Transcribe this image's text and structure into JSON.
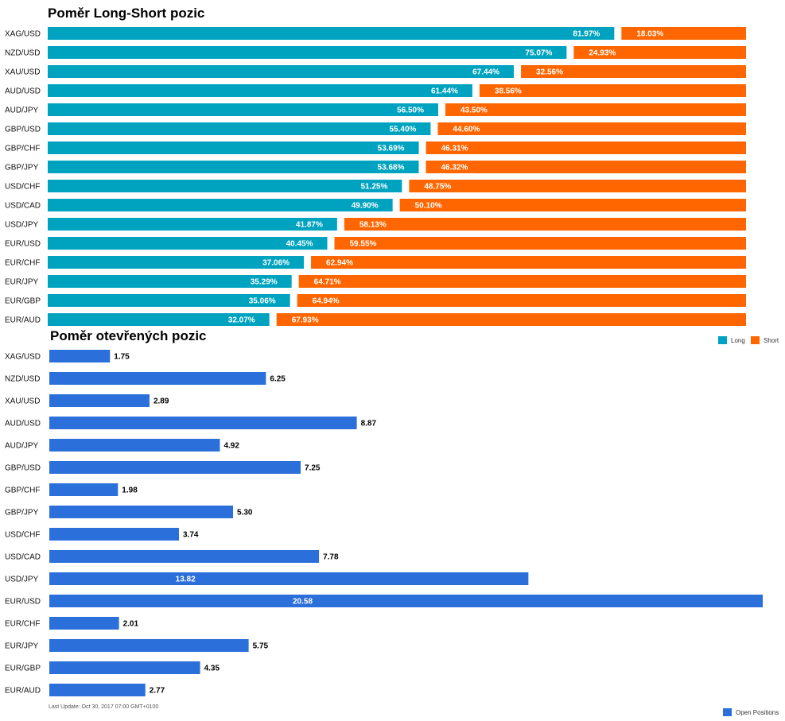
{
  "chart_data": [
    {
      "type": "bar",
      "stacked": true,
      "orientation": "horizontal",
      "title": "Poměr Long-Short pozic",
      "categories": [
        "XAG/USD",
        "NZD/USD",
        "XAU/USD",
        "AUD/USD",
        "AUD/JPY",
        "GBP/USD",
        "GBP/CHF",
        "GBP/JPY",
        "USD/CHF",
        "USD/CAD",
        "USD/JPY",
        "EUR/USD",
        "EUR/CHF",
        "EUR/JPY",
        "EUR/GBP",
        "EUR/AUD"
      ],
      "series": [
        {
          "name": "Long",
          "color": "#00A3BF",
          "values": [
            81.97,
            75.07,
            67.44,
            61.44,
            56.5,
            55.4,
            53.69,
            53.68,
            51.25,
            49.9,
            41.87,
            40.45,
            37.06,
            35.29,
            35.06,
            32.07
          ]
        },
        {
          "name": "Short",
          "color": "#FF6600",
          "values": [
            18.03,
            24.93,
            32.56,
            38.56,
            43.5,
            44.6,
            46.31,
            46.32,
            48.75,
            50.1,
            58.13,
            59.55,
            62.94,
            64.71,
            64.94,
            67.93
          ]
        }
      ],
      "labels": {
        "long": [
          "81.97%",
          "75.07%",
          "67.44%",
          "61.44%",
          "56.50%",
          "55.40%",
          "53.69%",
          "53.68%",
          "51.25%",
          "49.90%",
          "41.87%",
          "40.45%",
          "37.06%",
          "35.29%",
          "35.06%",
          "32.07%"
        ],
        "short": [
          "18.03%",
          "24.93%",
          "32.56%",
          "38.56%",
          "43.50%",
          "44.60%",
          "46.31%",
          "46.32%",
          "48.75%",
          "50.10%",
          "58.13%",
          "59.55%",
          "62.94%",
          "64.71%",
          "64.94%",
          "67.93%"
        ]
      },
      "legend": "bottom-right",
      "xlim": [
        0,
        100
      ],
      "grid": false
    },
    {
      "type": "bar",
      "orientation": "horizontal",
      "title": "Poměr otevřených pozic",
      "categories": [
        "XAG/USD",
        "NZD/USD",
        "XAU/USD",
        "AUD/USD",
        "AUD/JPY",
        "GBP/USD",
        "GBP/CHF",
        "GBP/JPY",
        "USD/CHF",
        "USD/CAD",
        "USD/JPY",
        "EUR/USD",
        "EUR/CHF",
        "EUR/JPY",
        "EUR/GBP",
        "EUR/AUD"
      ],
      "series": [
        {
          "name": "Open Positions",
          "color": "#2B6FDB",
          "values": [
            1.75,
            6.25,
            2.89,
            8.87,
            4.92,
            7.25,
            1.98,
            5.3,
            3.74,
            7.78,
            13.82,
            20.58,
            2.01,
            5.75,
            4.35,
            2.77
          ]
        }
      ],
      "labels": [
        "1.75",
        "6.25",
        "2.89",
        "8.87",
        "4.92",
        "7.25",
        "1.98",
        "5.30",
        "3.74",
        "7.78",
        "13.82",
        "20.58",
        "2.01",
        "5.75",
        "4.35",
        "2.77"
      ],
      "legend": "bottom-right",
      "xlim": [
        0,
        20.58
      ],
      "grid": false
    }
  ],
  "footer": "Last Update: Oct 30, 2017 07:00 GMT+0100"
}
